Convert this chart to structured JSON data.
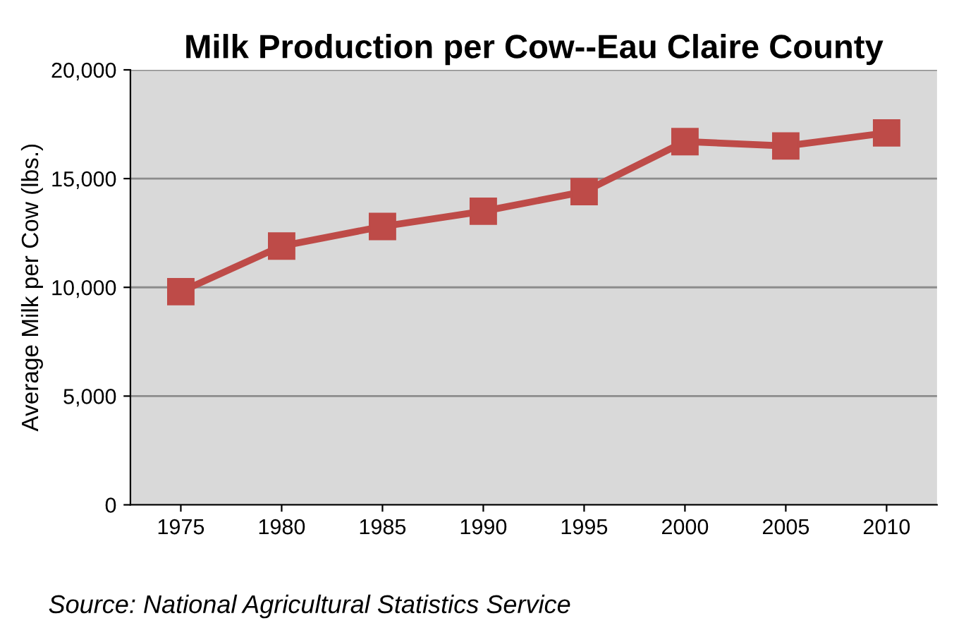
{
  "chart_data": {
    "type": "line",
    "title": "Milk Production per Cow--Eau Claire County",
    "ylabel": "Average Milk per Cow (lbs.)",
    "categories": [
      "1975",
      "1980",
      "1985",
      "1990",
      "1995",
      "2000",
      "2005",
      "2010"
    ],
    "series": [
      {
        "color": "#be4b48",
        "values": [
          9800,
          11900,
          12800,
          13500,
          14400,
          16700,
          16500,
          17100
        ]
      }
    ],
    "ylim": [
      0,
      20000
    ],
    "yticks": [
      {
        "value": 0,
        "label": "0"
      },
      {
        "value": 5000,
        "label": "5,000"
      },
      {
        "value": 10000,
        "label": "10,000"
      },
      {
        "value": 15000,
        "label": "15,000"
      },
      {
        "value": 20000,
        "label": "20,000"
      }
    ],
    "grid": "y",
    "marker": "square",
    "line_style": "solid",
    "annotations": [
      "Source: National Agricultural Statistics Service"
    ]
  }
}
